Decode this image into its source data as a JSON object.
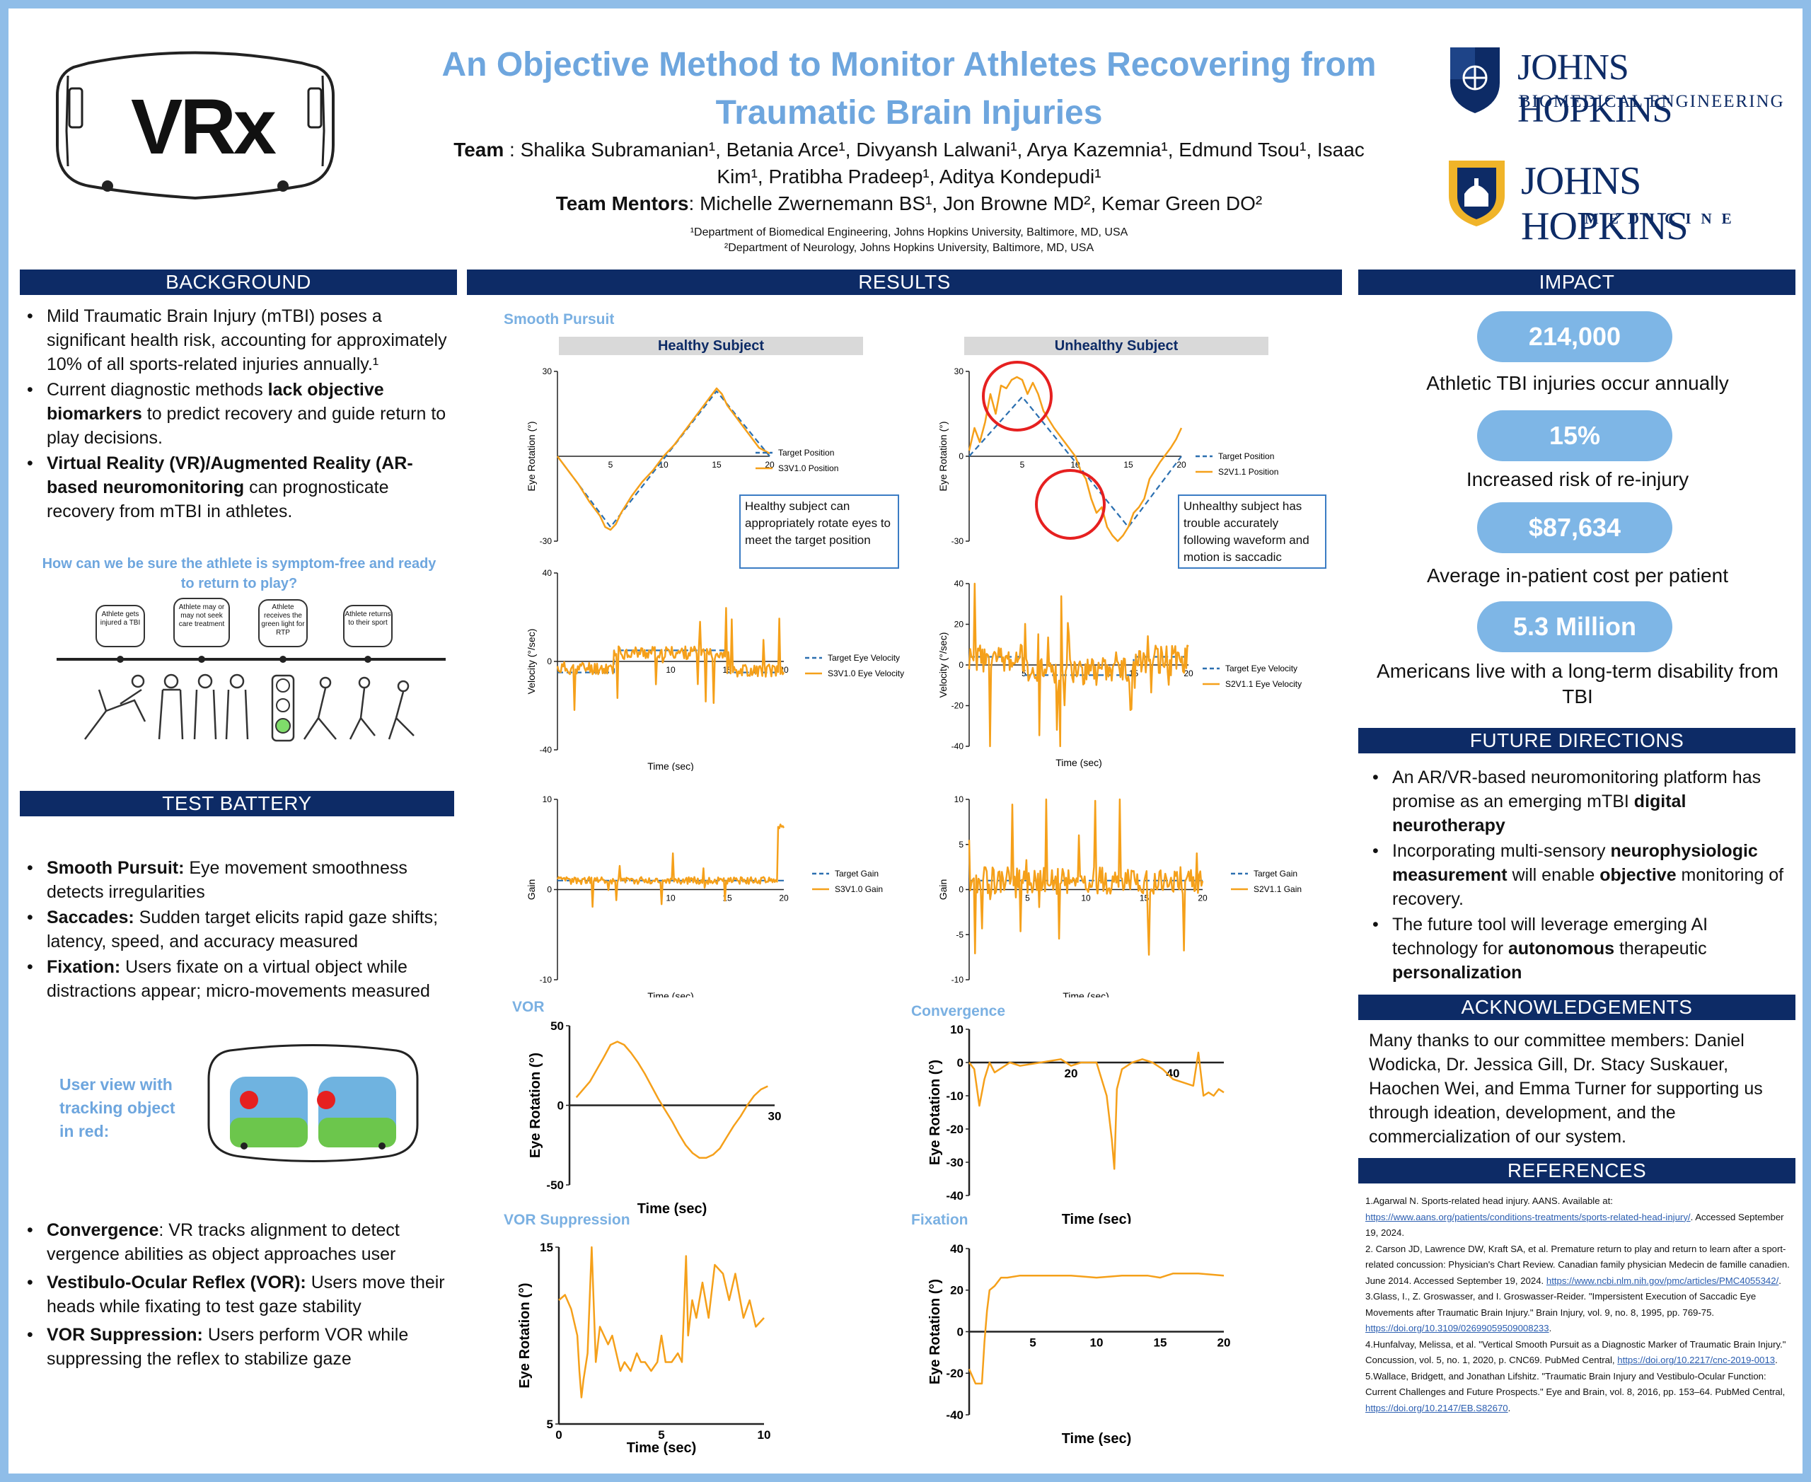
{
  "title": "An Objective Method to Monitor Athletes Recovering from Traumatic Brain Injuries",
  "logo_text": "VRx",
  "team": {
    "label": "Team",
    "line1": " : Shalika Subramanian¹, Betania Arce¹, Divyansh Lalwani¹, Arya Kazemnia¹, Edmund Tsou¹, Isaac",
    "line2": "Kim¹, Pratibha Pradeep¹, Aditya Kondepudi¹",
    "mentors_label": "Team Mentors",
    "mentors": ": Michelle Zwernemann BS¹, Jon Browne MD², Kemar Green DO²",
    "affil1": "¹Department of Biomedical Engineering, Johns Hopkins University, Baltimore, MD, USA",
    "affil2": "²Department of Neurology, Johns Hopkins University, Baltimore, MD, USA"
  },
  "logos": {
    "jhu1_line1": "JOHNS HOPKINS",
    "jhu1_line2": "BIOMEDICAL ENGINEERING",
    "jhu2_line1": "JOHNS HOPKINS",
    "jhu2_line2": "MEDICINE"
  },
  "sections": {
    "background": "BACKGROUND",
    "test_battery": "TEST BATTERY",
    "results": "RESULTS",
    "impact": "IMPACT",
    "future": "FUTURE DIRECTIONS",
    "ack": "ACKNOWLEDGEMENTS",
    "refs": "REFERENCES"
  },
  "background": {
    "b1": "Mild Traumatic Brain Injury (mTBI) poses a significant health risk, accounting for approximately 10% of all sports-related injuries annually.¹",
    "b2a": " Current diagnostic methods ",
    "b2b": "lack objective biomarkers",
    "b2c": " to predict recovery and guide return to play decisions.",
    "b3a": "Virtual Reality (VR)/Augmented Reality (AR-based neuromonitoring",
    "b3b": " can prognosticate recovery from mTBI in athletes.",
    "question": "How can we be sure the athlete is symptom-free and ready to return to play?",
    "timeline": [
      "Athlete gets injured a TBI",
      "Athlete may or may not seek care treatment",
      "Athlete receives the green light for RTP",
      "Athlete returns to their sport"
    ]
  },
  "test_battery": {
    "t1a": "Smooth Pursuit:",
    "t1b": " Eye movement smoothness detects irregularities",
    "t2a": "Saccades:",
    "t2b": " Sudden target elicits rapid gaze shifts; latency, speed, and accuracy measured",
    "t3a": "Fixation:",
    "t3b": " Users fixate on a virtual object while distractions appear; micro-movements measured",
    "user_view": "User view with tracking object in red:",
    "t4a": "Convergence",
    "t4b": ": VR tracks alignment to detect vergence abilities as object approaches user",
    "t5a": "Vestibulo-Ocular Reflex (VOR):",
    "t5b": " Users move their heads while fixating to test gaze stability",
    "t6a": "VOR Suppression:",
    "t6b": " Users perform VOR while suppressing the reflex to stabilize gaze"
  },
  "results": {
    "smooth_pursuit": "Smooth Pursuit",
    "healthy": "Healthy Subject",
    "unhealthy": "Unhealthy Subject",
    "healthy_note": "Healthy subject can appropriately rotate eyes to meet the target position",
    "unhealthy_note": "Unhealthy subject has trouble accurately following waveform and motion is saccadic",
    "vor": "VOR",
    "convergence": "Convergence",
    "vor_supp": "VOR Suppression",
    "fixation": "Fixation"
  },
  "impact": [
    {
      "value": "214,000",
      "caption": "Athletic TBI injuries occur annually"
    },
    {
      "value": "15%",
      "caption": "Increased risk of re-injury"
    },
    {
      "value": "$87,634",
      "caption": "Average in-patient cost per patient"
    },
    {
      "value": "5.3 Million",
      "caption": "Americans live with a long-term disability from TBI"
    }
  ],
  "future": {
    "f1a": "An AR/VR-based neuromonitoring platform has promise as an emerging mTBI ",
    "f1b": "digital neurotherapy",
    "f2a": "Incorporating multi-sensory ",
    "f2b": "neurophysiologic measurement",
    "f2c": " will enable ",
    "f2d": "objective",
    "f2e": " monitoring of recovery.",
    "f3a": "The future tool will leverage emerging AI technology for ",
    "f3b": "autonomous",
    "f3c": " therapeutic ",
    "f3d": "personalization"
  },
  "ack": "Many thanks to our committee members: Daniel Wodicka, Dr. Jessica Gill, Dr. Stacy Suskauer, Haochen Wei, and Emma Turner for supporting us through ideation, development, and the commercialization of our system.",
  "refs": {
    "r1": "1.Agarwal N. Sports-related head injury. AANS. Available at:",
    "r1url": "https://www.aans.org/patients/conditions-treatments/sports-related-head-injury/",
    "r1b": ". Accessed September 19, 2024.",
    "r2": "2. Carson JD, Lawrence DW, Kraft SA, et al. Premature return to play and return to learn after a sport-related concussion: Physician's Chart Review. Canadian family physician Medecin de famille canadien. June 2014. Accessed September 19, 2024.",
    "r2url": "https://www.ncbi.nlm.nih.gov/pmc/articles/PMC4055342/",
    "r3": "3.Glass, I., Z. Groswasser, and I. Groswasser-Reider. \"Impersistent Execution of Saccadic Eye Movements after Traumatic Brain Injury.\" Brain Injury, vol. 9, no. 8, 1995, pp. 769-75.",
    "r3url": "https://doi.org/10.3109/02699059509008233",
    "r4": "4.Hunfalvay, Melissa, et al. \"Vertical Smooth Pursuit as a Diagnostic Marker of Traumatic Brain Injury.\" Concussion, vol. 5, no. 1, 2020, p. CNC69. PubMed Central,",
    "r4url": "https://doi.org/10.2217/cnc-2019-0013",
    "r5": "5.Wallace, Bridgett, and Jonathan Lifshitz. \"Traumatic Brain Injury and Vestibulo-Ocular Function: Current Challenges and Future Prospects.\" Eye and Brain, vol. 8, 2016, pp. 153–64. PubMed Central,",
    "r5url": "https://doi.org/10.2147/EB.S82670"
  },
  "chart_data": [
    {
      "id": "sp_healthy",
      "type": "line",
      "ylabel": "Eye Rotation (°)",
      "xlabel": "Time (sec)",
      "xlim": [
        0,
        20
      ],
      "ylim": [
        -30,
        30
      ],
      "xticks": [
        5,
        10,
        15,
        20
      ],
      "yticks": [
        30,
        -30
      ],
      "series": [
        {
          "name": "Target Position",
          "style": "dashed",
          "x": [
            0,
            5,
            15,
            20
          ],
          "y": [
            0,
            -25,
            23,
            0
          ]
        },
        {
          "name": "S3V1.0 Position",
          "x": [
            0,
            1,
            2,
            3,
            4,
            4.5,
            5,
            5.5,
            6,
            7,
            8,
            9,
            10,
            11,
            12,
            13,
            14,
            15,
            15.5,
            16,
            17,
            18,
            19,
            20
          ],
          "y": [
            0,
            -5,
            -10,
            -16,
            -21,
            -25,
            -26,
            -24,
            -20,
            -14,
            -9,
            -5,
            0,
            4,
            9,
            14,
            19,
            24,
            22,
            18,
            13,
            8,
            3,
            1
          ]
        }
      ]
    },
    {
      "id": "sp_unhealthy",
      "type": "line",
      "ylabel": "Eye Rotation (°)",
      "xlabel": "Time (sec)",
      "xlim": [
        0,
        20
      ],
      "ylim": [
        -30,
        30
      ],
      "xticks": [
        5,
        10,
        15,
        20
      ],
      "yticks": [
        30,
        0,
        -30
      ],
      "series": [
        {
          "name": "Target Position",
          "style": "dashed",
          "x": [
            0,
            5,
            15,
            20
          ],
          "y": [
            0,
            21,
            -25,
            0
          ]
        },
        {
          "name": "S2V1.1 Position",
          "x": [
            0,
            0.5,
            1,
            1.5,
            2,
            2.5,
            3,
            3.5,
            4,
            4.5,
            5,
            5.5,
            6,
            6.5,
            7,
            8,
            9,
            10,
            10.5,
            11,
            11.5,
            12,
            12.5,
            13,
            13.5,
            14,
            14.5,
            15,
            15.5,
            16,
            16.5,
            17,
            17.5,
            18,
            19,
            19.5,
            20
          ],
          "y": [
            2,
            10,
            5,
            12,
            22,
            15,
            25,
            24,
            27,
            28,
            27,
            22,
            26,
            22,
            16,
            10,
            5,
            0,
            -5,
            -8,
            -15,
            -20,
            -18,
            -25,
            -28,
            -30,
            -28,
            -25,
            -20,
            -18,
            -15,
            -8,
            -5,
            -2,
            3,
            6,
            10
          ]
        }
      ]
    },
    {
      "id": "vel_healthy",
      "type": "line",
      "ylabel": "Velocity (°/sec)",
      "xlabel": "Time (sec)",
      "xlim": [
        0,
        20
      ],
      "ylim": [
        -40,
        40
      ],
      "xticks": [
        10,
        15,
        20
      ],
      "yticks": [
        40,
        0,
        -40
      ],
      "series": [
        {
          "name": "Target Eye Velocity",
          "style": "dashed",
          "x": [
            0,
            5,
            5,
            15,
            15,
            20
          ],
          "y": [
            -5,
            -5,
            5,
            5,
            -5,
            -5
          ]
        },
        {
          "name": "S3V1.0 Eye Velocity"
        }
      ]
    },
    {
      "id": "vel_unhealthy",
      "type": "line",
      "ylabel": "Velocity (°/sec)",
      "xlabel": "Time (sec)",
      "xlim": [
        0,
        20
      ],
      "ylim": [
        -40,
        40
      ],
      "xticks": [
        5,
        15,
        20
      ],
      "yticks": [
        40,
        20,
        0,
        -20,
        -40
      ],
      "series": [
        {
          "name": "Target Eye Velocity",
          "style": "dashed",
          "x": [
            0,
            5,
            5,
            15,
            15,
            20
          ],
          "y": [
            4,
            4,
            -5,
            -5,
            4,
            4
          ]
        },
        {
          "name": "S2V1.1 Eye Velocity"
        }
      ]
    },
    {
      "id": "gain_healthy",
      "type": "line",
      "ylabel": "Gain",
      "xlabel": "Time (sec)",
      "xlim": [
        0,
        20
      ],
      "ylim": [
        -10,
        10
      ],
      "xticks": [
        10,
        15,
        20
      ],
      "yticks": [
        10,
        0,
        -10
      ],
      "series": [
        {
          "name": "Target Gain",
          "style": "dashed",
          "x": [
            0,
            20
          ],
          "y": [
            1,
            1
          ]
        },
        {
          "name": "S3V1.0 Gain"
        }
      ]
    },
    {
      "id": "gain_unhealthy",
      "type": "line",
      "ylabel": "Gain",
      "xlabel": "Time (sec)",
      "xlim": [
        0,
        20
      ],
      "ylim": [
        -10,
        10
      ],
      "xticks": [
        5,
        10,
        15,
        20
      ],
      "yticks": [
        10,
        5,
        0,
        -5,
        -10
      ],
      "series": [
        {
          "name": "Target Gain",
          "style": "dashed",
          "x": [
            0,
            20
          ],
          "y": [
            1,
            1
          ]
        },
        {
          "name": "S2V1.1 Gain"
        }
      ]
    },
    {
      "id": "vor",
      "type": "line",
      "ylabel": "Eye Rotation (°)",
      "xlabel": "Time (sec)",
      "xlim": [
        0,
        30
      ],
      "ylim": [
        -50,
        50
      ],
      "xticks": [
        30
      ],
      "yticks": [
        50,
        0,
        -50
      ],
      "series": [
        {
          "x": [
            1,
            3,
            5,
            6,
            7,
            8,
            9,
            10,
            11,
            12,
            13,
            14,
            15,
            16,
            17,
            18,
            19,
            20,
            21,
            22,
            23,
            24,
            25,
            26,
            27,
            28,
            29
          ],
          "y": [
            5,
            15,
            30,
            38,
            40,
            38,
            33,
            27,
            20,
            12,
            4,
            -3,
            -10,
            -18,
            -25,
            -30,
            -33,
            -33,
            -31,
            -27,
            -20,
            -13,
            -7,
            0,
            6,
            10,
            12
          ]
        }
      ]
    },
    {
      "id": "convergence",
      "type": "line",
      "ylabel": "Eye Rotation (°)",
      "xlabel": "Time (sec)",
      "xlim": [
        0,
        50
      ],
      "ylim": [
        -40,
        10
      ],
      "xticks": [
        20,
        40
      ],
      "yticks": [
        10,
        0,
        -10,
        -20,
        -30,
        -40
      ],
      "series": [
        {
          "x": [
            0,
            1,
            2,
            3,
            4,
            5,
            8,
            10,
            14,
            18,
            20,
            22,
            25,
            26,
            27,
            28,
            28.5,
            29,
            30,
            32,
            34,
            36,
            38,
            40,
            42,
            44,
            45,
            46,
            47,
            48,
            49,
            50
          ],
          "y": [
            0,
            -2,
            -13,
            -5,
            0,
            -3,
            0,
            -1,
            0,
            1,
            -1,
            0,
            0,
            -5,
            -10,
            -23,
            -32,
            -8,
            -2,
            0,
            1,
            0,
            -2,
            -5,
            -6,
            -7,
            3,
            -10,
            -9,
            -10,
            -8,
            -9
          ]
        }
      ]
    },
    {
      "id": "vor_supp",
      "type": "line",
      "ylabel": "Eye Rotation (°)",
      "xlabel": "Time (sec)",
      "xlim": [
        0,
        10
      ],
      "ylim": [
        5,
        15
      ],
      "xticks": [
        0,
        5,
        10
      ],
      "yticks": [
        15,
        5
      ],
      "series": [
        {
          "x": [
            0,
            0.3,
            0.6,
            0.9,
            1.0,
            1.1,
            1.2,
            1.4,
            1.6,
            1.8,
            2.0,
            2.2,
            2.4,
            2.6,
            2.8,
            3.0,
            3.2,
            3.5,
            3.8,
            4.0,
            4.2,
            4.5,
            4.8,
            5.0,
            5.2,
            5.5,
            5.8,
            6.0,
            6.2,
            6.3,
            6.5,
            6.7,
            7.0,
            7.3,
            7.6,
            8.0,
            8.3,
            8.6,
            9.0,
            9.3,
            9.6,
            10
          ],
          "y": [
            12,
            12.3,
            11.5,
            10,
            8,
            6.5,
            7.5,
            9,
            15,
            8.5,
            10.5,
            10,
            9.5,
            10,
            9,
            8,
            8.5,
            8,
            9,
            8.5,
            8.5,
            8,
            8.5,
            10,
            8.5,
            8.5,
            9,
            8.5,
            14.5,
            10,
            12,
            11,
            13,
            11,
            14,
            13.5,
            12,
            13.5,
            11,
            12,
            10.5,
            11
          ]
        }
      ]
    },
    {
      "id": "fixation",
      "type": "line",
      "ylabel": "Eye Rotation (°)",
      "xlabel": "Time (sec)",
      "xlim": [
        0,
        20
      ],
      "ylim": [
        -40,
        40
      ],
      "xticks": [
        5,
        10,
        15,
        20
      ],
      "yticks": [
        40,
        20,
        0,
        -20,
        -40
      ],
      "series": [
        {
          "x": [
            0,
            0.5,
            1,
            1.2,
            1.4,
            1.6,
            2,
            2.5,
            3,
            4,
            6,
            8,
            10,
            12,
            14,
            15,
            16,
            18,
            20
          ],
          "y": [
            -18,
            -25,
            -25,
            -5,
            10,
            20,
            22,
            26,
            26,
            27,
            27,
            27,
            26,
            27,
            27,
            26,
            28,
            28,
            27
          ]
        }
      ]
    }
  ]
}
